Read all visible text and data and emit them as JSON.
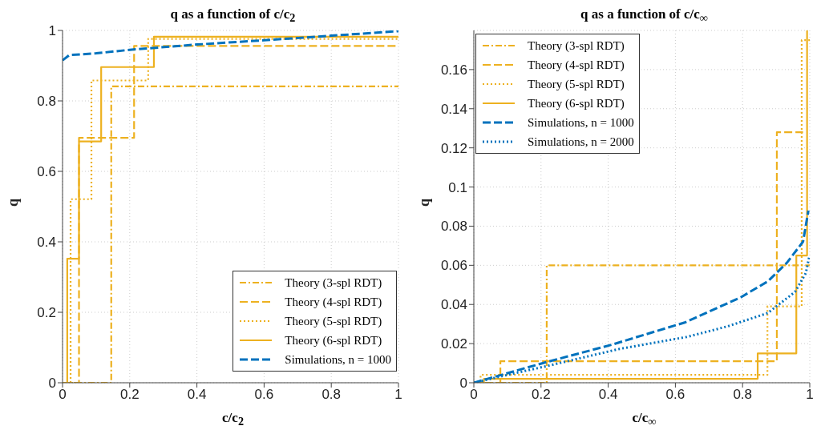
{
  "chart_data": [
    {
      "type": "step",
      "title": "q as a function of c/c$_{2}$",
      "xlabel": "c/c$_{2}$",
      "ylabel": "q",
      "xlim": [
        0,
        1
      ],
      "ylim": [
        0,
        1
      ],
      "xticks": [
        0,
        0.2,
        0.4,
        0.6,
        0.8,
        1
      ],
      "yticks": [
        0,
        0.2,
        0.4,
        0.6,
        0.8,
        1
      ],
      "grid": true,
      "legend": "bottom right",
      "series": [
        {
          "name": "Theory (3-spl RDT)",
          "color": "#edb120",
          "line_style": "dashdot",
          "x": [
            0,
            0.145,
            1
          ],
          "values": [
            0,
            0.841,
            0.841
          ]
        },
        {
          "name": "Theory (4-spl RDT)",
          "color": "#edb120",
          "line_style": "dashed",
          "x": [
            0,
            0.049,
            0.213,
            1
          ],
          "values": [
            0,
            0.695,
            0.956,
            0.956
          ]
        },
        {
          "name": "Theory (5-spl RDT)",
          "color": "#edb120",
          "line_style": "dotted",
          "x": [
            0,
            0.024,
            0.086,
            0.255,
            1
          ],
          "values": [
            0,
            0.521,
            0.858,
            0.976,
            0.976
          ]
        },
        {
          "name": "Theory (6-spl RDT)",
          "color": "#edb120",
          "line_style": "solid",
          "x": [
            0,
            0.014,
            0.049,
            0.115,
            0.272,
            1
          ],
          "values": [
            0,
            0.352,
            0.685,
            0.896,
            0.982,
            0.982
          ]
        },
        {
          "name": "Simulations, n = 1000",
          "type": "line",
          "color": "#0072bd",
          "line_style": "dashed",
          "x": [
            0,
            0.02,
            0.1,
            0.2,
            0.4,
            0.6,
            0.8,
            1
          ],
          "values": [
            0.915,
            0.93,
            0.935,
            0.945,
            0.96,
            0.972,
            0.985,
            0.998
          ]
        }
      ]
    },
    {
      "type": "step",
      "title": "q as a function of c/c$_{∞}$",
      "xlabel": "c/c$_{∞}$",
      "ylabel": "q",
      "xlim": [
        0,
        1
      ],
      "ylim": [
        0,
        0.18
      ],
      "xticks": [
        0,
        0.2,
        0.4,
        0.6,
        0.8,
        1
      ],
      "yticks": [
        0,
        0.02,
        0.04,
        0.06,
        0.08,
        0.1,
        0.12,
        0.14,
        0.16
      ],
      "grid": true,
      "legend": "top left",
      "series": [
        {
          "name": "Theory (3-spl RDT)",
          "color": "#edb120",
          "line_style": "dashdot",
          "x": [
            0,
            0.217,
            1
          ],
          "values": [
            0,
            0.06,
            0.06
          ]
        },
        {
          "name": "Theory (4-spl RDT)",
          "color": "#edb120",
          "line_style": "dashed",
          "x": [
            0,
            0.079,
            0.902,
            0.98
          ],
          "values": [
            0,
            0.011,
            0.128,
            0.128
          ]
        },
        {
          "name": "Theory (5-spl RDT)",
          "color": "#edb120",
          "line_style": "dotted",
          "x": [
            0,
            0.02,
            0.874,
            0.976,
            1
          ],
          "values": [
            0,
            0.004,
            0.039,
            0.175,
            0.175
          ]
        },
        {
          "name": "Theory (6-spl RDT)",
          "color": "#edb120",
          "line_style": "solid",
          "x": [
            0,
            0.03,
            0.845,
            0.96,
            0.992
          ],
          "values": [
            0,
            0.002,
            0.015,
            0.065,
            0.18
          ]
        },
        {
          "name": "Simulations, n = 1000",
          "type": "line",
          "color": "#0072bd",
          "line_style": "dashed",
          "x": [
            0,
            0.217,
            0.41,
            0.63,
            0.795,
            0.875,
            0.932,
            0.98,
            0.996
          ],
          "values": [
            0,
            0.0106,
            0.0194,
            0.0309,
            0.0437,
            0.0518,
            0.0613,
            0.0721,
            0.088
          ]
        },
        {
          "name": "Simulations, n = 2000",
          "type": "line",
          "color": "#0072bd",
          "line_style": "dotted",
          "x": [
            0,
            0.112,
            0.217,
            0.434,
            0.634,
            0.755,
            0.875,
            0.956,
            0.988,
            0.998
          ],
          "values": [
            0,
            0.0045,
            0.0085,
            0.0173,
            0.0234,
            0.0288,
            0.0356,
            0.0464,
            0.0559,
            0.064
          ]
        }
      ]
    }
  ]
}
